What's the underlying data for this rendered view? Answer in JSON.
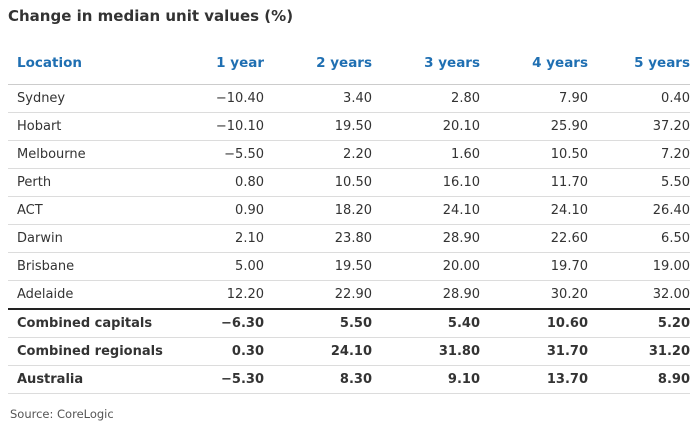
{
  "title": "Change in median unit values (%)",
  "source": "Source: CoreLogic",
  "colors": {
    "header_text": "#1f6fb2",
    "separator": "#222222"
  },
  "chart_data": {
    "type": "table",
    "title": "Change in median unit values (%)",
    "columns": [
      "Location",
      "1 year",
      "2 years",
      "3 years",
      "4 years",
      "5 years"
    ],
    "rows": [
      {
        "location": "Sydney",
        "values": [
          "−10.40",
          "3.40",
          "2.80",
          "7.90",
          "0.40"
        ]
      },
      {
        "location": "Hobart",
        "values": [
          "−10.10",
          "19.50",
          "20.10",
          "25.90",
          "37.20"
        ]
      },
      {
        "location": "Melbourne",
        "values": [
          "−5.50",
          "2.20",
          "1.60",
          "10.50",
          "7.20"
        ]
      },
      {
        "location": "Perth",
        "values": [
          "0.80",
          "10.50",
          "16.10",
          "11.70",
          "5.50"
        ]
      },
      {
        "location": "ACT",
        "values": [
          "0.90",
          "18.20",
          "24.10",
          "24.10",
          "26.40"
        ]
      },
      {
        "location": "Darwin",
        "values": [
          "2.10",
          "23.80",
          "28.90",
          "22.60",
          "6.50"
        ]
      },
      {
        "location": "Brisbane",
        "values": [
          "5.00",
          "19.50",
          "20.00",
          "19.70",
          "19.00"
        ]
      },
      {
        "location": "Adelaide",
        "values": [
          "12.20",
          "22.90",
          "28.90",
          "30.20",
          "32.00"
        ]
      }
    ],
    "summary_rows": [
      {
        "location": "Combined capitals",
        "values": [
          "−6.30",
          "5.50",
          "5.40",
          "10.60",
          "5.20"
        ]
      },
      {
        "location": "Combined regionals",
        "values": [
          "0.30",
          "24.10",
          "31.80",
          "31.70",
          "31.20"
        ]
      },
      {
        "location": "Australia",
        "values": [
          "−5.30",
          "8.30",
          "9.10",
          "13.70",
          "8.90"
        ]
      }
    ]
  }
}
